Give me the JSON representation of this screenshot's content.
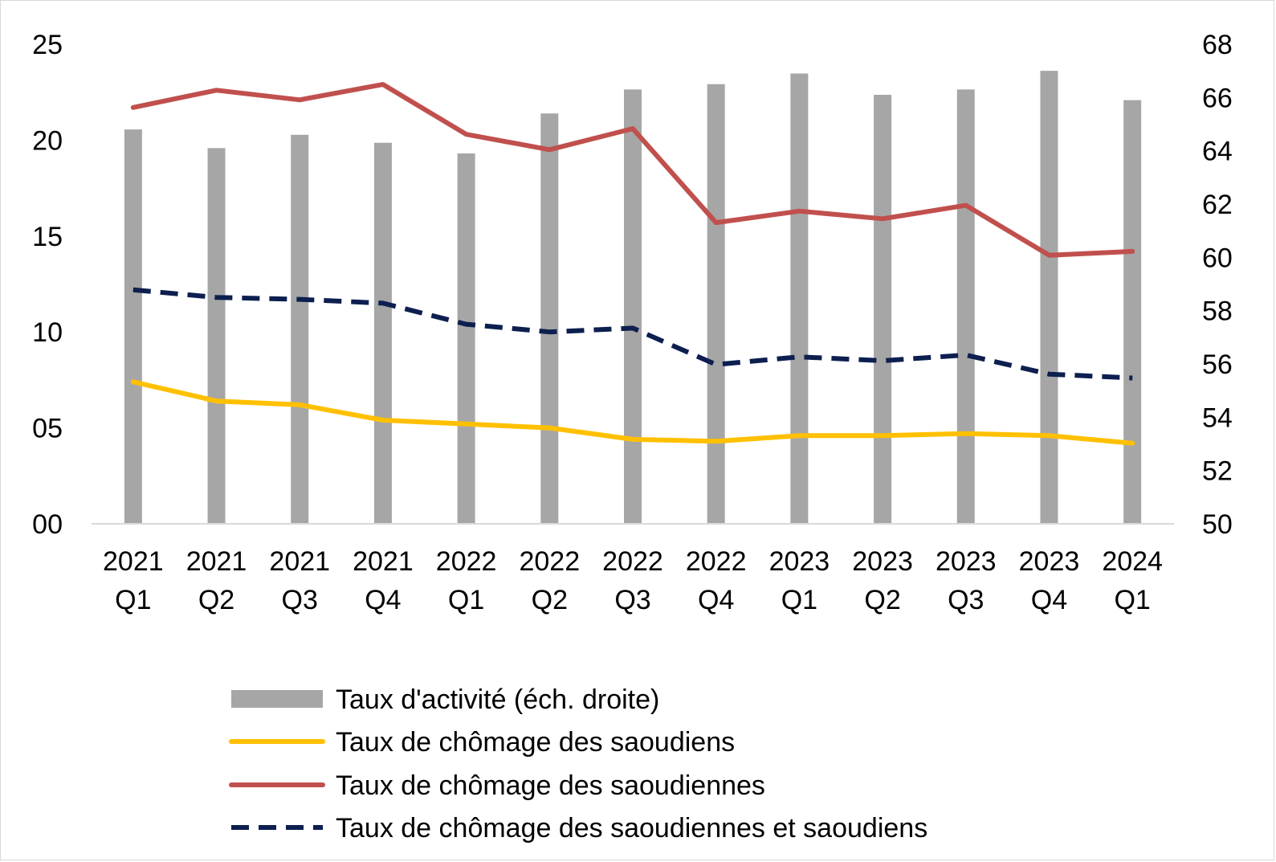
{
  "chart_data": {
    "type": "bar",
    "categories": [
      [
        "2021",
        "Q1"
      ],
      [
        "2021",
        "Q2"
      ],
      [
        "2021",
        "Q3"
      ],
      [
        "2021",
        "Q4"
      ],
      [
        "2022",
        "Q1"
      ],
      [
        "2022",
        "Q2"
      ],
      [
        "2022",
        "Q3"
      ],
      [
        "2022",
        "Q4"
      ],
      [
        "2023",
        "Q1"
      ],
      [
        "2023",
        "Q2"
      ],
      [
        "2023",
        "Q3"
      ],
      [
        "2023",
        "Q4"
      ],
      [
        "2024",
        "Q1"
      ]
    ],
    "y_left": {
      "min": 0,
      "max": 25,
      "ticks": [
        "00",
        "05",
        "10",
        "15",
        "20",
        "25"
      ],
      "tick_values": [
        0,
        5,
        10,
        15,
        20,
        25
      ]
    },
    "y_right": {
      "min": 50,
      "max": 68,
      "ticks": [
        "50",
        "52",
        "54",
        "56",
        "58",
        "60",
        "62",
        "64",
        "66",
        "68"
      ],
      "tick_values": [
        50,
        52,
        54,
        56,
        58,
        60,
        62,
        64,
        66,
        68
      ]
    },
    "grid": false,
    "legend_position": "bottom",
    "series": [
      {
        "name": "Taux d'activité (éch. droite)",
        "type": "bar",
        "axis": "right",
        "color": "#a6a6a6",
        "values": [
          64.8,
          64.1,
          64.6,
          64.3,
          63.9,
          65.4,
          66.3,
          66.5,
          66.9,
          66.1,
          66.3,
          67.0,
          65.9
        ]
      },
      {
        "name": "Taux de chômage des saoudiens",
        "type": "line",
        "axis": "left",
        "color": "#ffc000",
        "dashed": false,
        "values": [
          7.4,
          6.4,
          6.2,
          5.4,
          5.2,
          5.0,
          4.4,
          4.3,
          4.6,
          4.6,
          4.7,
          4.6,
          4.2
        ]
      },
      {
        "name": "Taux de chômage des saoudiennes",
        "type": "line",
        "axis": "left",
        "color": "#c0504d",
        "dashed": false,
        "values": [
          21.7,
          22.6,
          22.1,
          22.9,
          20.3,
          19.5,
          20.6,
          15.7,
          16.3,
          15.9,
          16.6,
          14.0,
          14.2
        ]
      },
      {
        "name": "Taux de chômage des saoudiennes et saoudiens",
        "type": "line",
        "axis": "left",
        "color": "#0d1f4f",
        "dashed": true,
        "values": [
          12.2,
          11.8,
          11.7,
          11.5,
          10.4,
          10.0,
          10.2,
          8.3,
          8.7,
          8.5,
          8.8,
          7.8,
          7.6
        ]
      }
    ]
  }
}
